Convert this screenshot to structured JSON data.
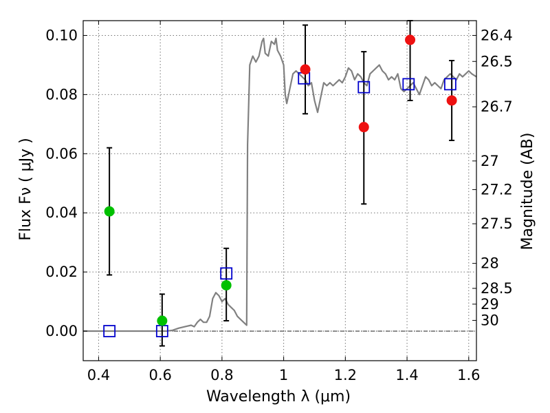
{
  "chart_data": {
    "type": "scatter",
    "xlabel": "Wavelength  λ (μm)",
    "ylabel": "Flux  Fν  ( μJy )",
    "ylabel_right": "Magnitude (AB)",
    "xlim": [
      0.35,
      1.625
    ],
    "ylim": [
      -0.01,
      0.105
    ],
    "x_ticks": [
      "0.4",
      "0.6",
      "0.8",
      "1",
      "1.2",
      "1.4",
      "1.6"
    ],
    "x_tick_values": [
      0.4,
      0.6,
      0.8,
      1.0,
      1.2,
      1.4,
      1.6
    ],
    "y_ticks": [
      "0.00",
      "0.02",
      "0.04",
      "0.06",
      "0.08",
      "0.10"
    ],
    "y_tick_values": [
      0.0,
      0.02,
      0.04,
      0.06,
      0.08,
      0.1
    ],
    "right_ticks": [
      {
        "label": "26.4",
        "value": 26.4
      },
      {
        "label": "26.5",
        "value": 26.5
      },
      {
        "label": "26.7",
        "value": 26.7
      },
      {
        "label": "27",
        "value": 27.0
      },
      {
        "label": "27.2",
        "value": 27.2
      },
      {
        "label": "27.5",
        "value": 27.5
      },
      {
        "label": "28",
        "value": 28.0
      },
      {
        "label": "28.5",
        "value": 28.5
      },
      {
        "label": "29",
        "value": 29.0
      },
      {
        "label": "30",
        "value": 30.0
      }
    ],
    "grid": true,
    "colors": {
      "model": "#808080",
      "green": "#00c000",
      "red": "#ee1111",
      "blue": "#0000cc",
      "errorbar": "#000000"
    },
    "series": [
      {
        "kind": "line",
        "points": [
          [
            0.35,
            0.0
          ],
          [
            0.62,
            0.0
          ],
          [
            0.64,
            0.0003
          ],
          [
            0.66,
            0.001
          ],
          [
            0.68,
            0.0015
          ],
          [
            0.7,
            0.002
          ],
          [
            0.71,
            0.0015
          ],
          [
            0.72,
            0.003
          ],
          [
            0.73,
            0.004
          ],
          [
            0.74,
            0.003
          ],
          [
            0.75,
            0.003
          ],
          [
            0.76,
            0.005
          ],
          [
            0.77,
            0.011
          ],
          [
            0.78,
            0.013
          ],
          [
            0.79,
            0.012
          ],
          [
            0.8,
            0.01
          ],
          [
            0.81,
            0.011
          ],
          [
            0.82,
            0.009
          ],
          [
            0.83,
            0.008
          ],
          [
            0.84,
            0.007
          ],
          [
            0.85,
            0.005
          ],
          [
            0.86,
            0.004
          ],
          [
            0.87,
            0.003
          ],
          [
            0.88,
            0.002
          ],
          [
            0.883,
            0.063
          ],
          [
            0.89,
            0.09
          ],
          [
            0.9,
            0.093
          ],
          [
            0.91,
            0.091
          ],
          [
            0.92,
            0.093
          ],
          [
            0.93,
            0.098
          ],
          [
            0.935,
            0.099
          ],
          [
            0.94,
            0.094
          ],
          [
            0.95,
            0.093
          ],
          [
            0.96,
            0.098
          ],
          [
            0.97,
            0.097
          ],
          [
            0.975,
            0.099
          ],
          [
            0.98,
            0.095
          ],
          [
            0.99,
            0.093
          ],
          [
            1.0,
            0.09
          ],
          [
            1.005,
            0.08
          ],
          [
            1.01,
            0.077
          ],
          [
            1.02,
            0.082
          ],
          [
            1.03,
            0.087
          ],
          [
            1.04,
            0.088
          ],
          [
            1.05,
            0.087
          ],
          [
            1.06,
            0.086
          ],
          [
            1.07,
            0.085
          ],
          [
            1.08,
            0.083
          ],
          [
            1.09,
            0.084
          ],
          [
            1.1,
            0.078
          ],
          [
            1.11,
            0.074
          ],
          [
            1.12,
            0.079
          ],
          [
            1.13,
            0.084
          ],
          [
            1.14,
            0.083
          ],
          [
            1.15,
            0.084
          ],
          [
            1.16,
            0.083
          ],
          [
            1.17,
            0.084
          ],
          [
            1.18,
            0.085
          ],
          [
            1.19,
            0.084
          ],
          [
            1.2,
            0.086
          ],
          [
            1.21,
            0.089
          ],
          [
            1.22,
            0.088
          ],
          [
            1.23,
            0.085
          ],
          [
            1.24,
            0.087
          ],
          [
            1.25,
            0.086
          ],
          [
            1.26,
            0.084
          ],
          [
            1.27,
            0.083
          ],
          [
            1.28,
            0.087
          ],
          [
            1.29,
            0.088
          ],
          [
            1.3,
            0.089
          ],
          [
            1.31,
            0.09
          ],
          [
            1.32,
            0.088
          ],
          [
            1.33,
            0.087
          ],
          [
            1.34,
            0.085
          ],
          [
            1.35,
            0.086
          ],
          [
            1.36,
            0.085
          ],
          [
            1.37,
            0.087
          ],
          [
            1.38,
            0.082
          ],
          [
            1.39,
            0.081
          ],
          [
            1.4,
            0.082
          ],
          [
            1.41,
            0.083
          ],
          [
            1.42,
            0.084
          ],
          [
            1.43,
            0.082
          ],
          [
            1.44,
            0.08
          ],
          [
            1.45,
            0.083
          ],
          [
            1.46,
            0.086
          ],
          [
            1.47,
            0.085
          ],
          [
            1.48,
            0.083
          ],
          [
            1.49,
            0.084
          ],
          [
            1.5,
            0.083
          ],
          [
            1.51,
            0.082
          ],
          [
            1.52,
            0.085
          ],
          [
            1.53,
            0.086
          ],
          [
            1.54,
            0.087
          ],
          [
            1.55,
            0.086
          ],
          [
            1.56,
            0.085
          ],
          [
            1.57,
            0.087
          ],
          [
            1.58,
            0.086
          ],
          [
            1.59,
            0.087
          ],
          [
            1.6,
            0.088
          ],
          [
            1.61,
            0.087
          ],
          [
            1.625,
            0.086
          ]
        ]
      },
      {
        "kind": "points-green",
        "points": [
          {
            "x": 0.435,
            "y": 0.0405,
            "ylo": 0.019,
            "yhi": 0.062
          },
          {
            "x": 0.606,
            "y": 0.0035,
            "ylo": -0.005,
            "yhi": 0.0125
          },
          {
            "x": 0.814,
            "y": 0.0155,
            "ylo": 0.0035,
            "yhi": 0.028
          }
        ]
      },
      {
        "kind": "points-red",
        "points": [
          {
            "x": 1.07,
            "y": 0.0885,
            "ylo": 0.0735,
            "yhi": 0.1035
          },
          {
            "x": 1.26,
            "y": 0.069,
            "ylo": 0.043,
            "yhi": 0.0945
          },
          {
            "x": 1.41,
            "y": 0.0985,
            "ylo": 0.078,
            "yhi": 0.105
          },
          {
            "x": 1.545,
            "y": 0.078,
            "ylo": 0.0645,
            "yhi": 0.0915
          }
        ]
      },
      {
        "kind": "squares-blue",
        "points": [
          {
            "x": 0.435,
            "y": 0.0
          },
          {
            "x": 0.606,
            "y": 0.0
          },
          {
            "x": 0.814,
            "y": 0.0195
          },
          {
            "x": 1.066,
            "y": 0.0855
          },
          {
            "x": 1.26,
            "y": 0.0825
          },
          {
            "x": 1.405,
            "y": 0.0835
          },
          {
            "x": 1.54,
            "y": 0.0835
          }
        ]
      }
    ]
  }
}
